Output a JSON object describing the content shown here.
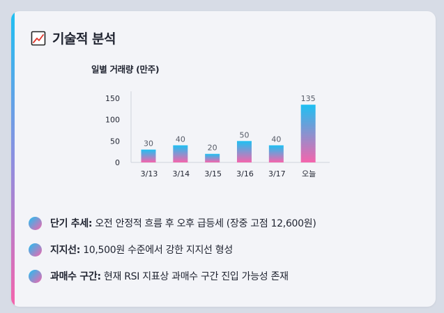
{
  "header": {
    "title": "기술적 분석",
    "icon": "chart-trend-icon"
  },
  "chart_data": {
    "type": "bar",
    "title": "일별 거래량 (만주)",
    "xlabel": "",
    "ylabel": "",
    "categories": [
      "3/13",
      "3/14",
      "3/15",
      "3/16",
      "3/17",
      "오늘"
    ],
    "values": [
      30,
      40,
      20,
      50,
      40,
      135
    ],
    "data_labels": [
      "30",
      "40",
      "20",
      "50",
      "40",
      "135"
    ],
    "ylim": [
      0,
      150
    ],
    "yticks": [
      0,
      50,
      100,
      150
    ],
    "grid": false,
    "bar_gradient": [
      "#1ec0f2",
      "#f564ac"
    ]
  },
  "notes": [
    {
      "label": "단기 추세:",
      "text": " 오전 안정적 흐름 후 오후 급등세 (장중 고점 12,600원)"
    },
    {
      "label": "지지선:",
      "text": " 10,500원 수준에서 강한 지지선 형성"
    },
    {
      "label": "과매수 구간:",
      "text": " 현재 RSI 지표상 과매수 구간 진입 가능성 존재"
    }
  ],
  "colors": {
    "accent_top": "#1ec0f2",
    "accent_bottom": "#f564ac",
    "card_bg": "#f3f4f8"
  }
}
